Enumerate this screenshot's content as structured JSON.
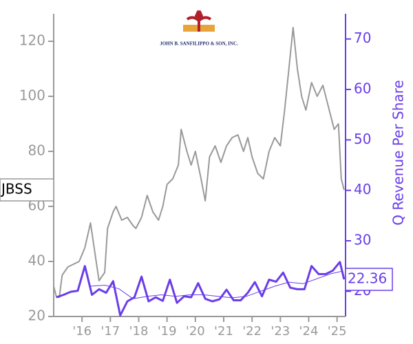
{
  "chart_data": {
    "type": "line",
    "ticker": "JBSS",
    "logo_text": "JOHN B. SANFILIPPO & SON, INC.",
    "y2_label": "Q Revenue Per Share",
    "xlim": [
      2015.0,
      2025.3
    ],
    "xticks": [
      {
        "value": 2016,
        "label": "'16"
      },
      {
        "value": 2017,
        "label": "'17"
      },
      {
        "value": 2018,
        "label": "'18"
      },
      {
        "value": 2019,
        "label": "'19"
      },
      {
        "value": 2020,
        "label": "'20"
      },
      {
        "value": 2021,
        "label": "'21"
      },
      {
        "value": 2022,
        "label": "'22"
      },
      {
        "value": 2023,
        "label": "'23"
      },
      {
        "value": 2024,
        "label": "'24"
      },
      {
        "value": 2025,
        "label": "'25"
      }
    ],
    "ylim": [
      20,
      130
    ],
    "yticks": [
      20,
      40,
      60,
      80,
      100,
      120
    ],
    "y2lim": [
      15,
      75
    ],
    "y2ticks": [
      20,
      30,
      40,
      50,
      60,
      70
    ],
    "series": [
      {
        "name": "JBSS",
        "color": "#999999",
        "width": 2,
        "axis": "y",
        "x": [
          2015.0,
          2015.1,
          2015.2,
          2015.3,
          2015.5,
          2015.7,
          2015.9,
          2016.1,
          2016.3,
          2016.5,
          2016.6,
          2016.8,
          2016.9,
          2017.1,
          2017.2,
          2017.4,
          2017.6,
          2017.8,
          2017.9,
          2018.1,
          2018.3,
          2018.5,
          2018.7,
          2018.85,
          2019.0,
          2019.2,
          2019.4,
          2019.5,
          2019.7,
          2019.85,
          2020.0,
          2020.2,
          2020.35,
          2020.5,
          2020.7,
          2020.9,
          2021.1,
          2021.3,
          2021.5,
          2021.7,
          2021.85,
          2022.0,
          2022.2,
          2022.4,
          2022.6,
          2022.8,
          2023.0,
          2023.15,
          2023.3,
          2023.45,
          2023.6,
          2023.75,
          2023.9,
          2024.1,
          2024.3,
          2024.5,
          2024.7,
          2024.9,
          2025.05,
          2025.15,
          2025.25
        ],
        "values": [
          31,
          27,
          27,
          35,
          38,
          39,
          40,
          45,
          54,
          40,
          33,
          36,
          52,
          58,
          60,
          55,
          56,
          53,
          52,
          56,
          64,
          58,
          55,
          60,
          68,
          70,
          75,
          88,
          80,
          75,
          80,
          70,
          62,
          78,
          82,
          76,
          82,
          85,
          86,
          80,
          85,
          78,
          72,
          70,
          80,
          85,
          82,
          95,
          110,
          125,
          110,
          100,
          95,
          105,
          100,
          104,
          96,
          88,
          90,
          70,
          66
        ]
      },
      {
        "name": "Q Revenue Per Share",
        "color": "#6a3de8",
        "width": 3,
        "axis": "y2",
        "x": [
          2015.1,
          2015.35,
          2015.6,
          2015.85,
          2016.1,
          2016.35,
          2016.6,
          2016.85,
          2017.1,
          2017.35,
          2017.6,
          2017.85,
          2018.1,
          2018.35,
          2018.6,
          2018.85,
          2019.1,
          2019.35,
          2019.6,
          2019.85,
          2020.1,
          2020.35,
          2020.6,
          2020.85,
          2021.1,
          2021.35,
          2021.6,
          2021.85,
          2022.1,
          2022.35,
          2022.6,
          2022.85,
          2023.1,
          2023.35,
          2023.6,
          2023.85,
          2024.1,
          2024.35,
          2024.6,
          2024.85,
          2025.1,
          2025.25
        ],
        "values": [
          18.8,
          19.3,
          19.9,
          20.1,
          25,
          19.3,
          20.4,
          19.7,
          22,
          15.2,
          18,
          18.8,
          22.9,
          18,
          18.8,
          18.1,
          22.3,
          17.7,
          19,
          18.8,
          21.6,
          18.5,
          18,
          18.4,
          20.3,
          18.2,
          18.2,
          19.7,
          21.8,
          19,
          22.3,
          21.9,
          23.7,
          20.7,
          20.4,
          20.4,
          25,
          23.4,
          23.4,
          24.1,
          25.8,
          22.36
        ]
      },
      {
        "name": "Q Revenue Per Share Average",
        "color": "#6a3de8",
        "width": 1,
        "axis": "y2",
        "x": [
          2016.3,
          2016.8,
          2017.3,
          2017.8,
          2018.3,
          2018.8,
          2019.3,
          2019.8,
          2020.3,
          2020.8,
          2021.3,
          2021.8,
          2022.3,
          2022.8,
          2023.3,
          2023.8,
          2024.3,
          2024.8,
          2025.2
        ],
        "values": [
          21.0,
          21.2,
          20.5,
          18.5,
          19.0,
          19.3,
          19.0,
          19.3,
          19.3,
          19.0,
          18.7,
          19.0,
          20.0,
          21.0,
          21.8,
          21.5,
          22.5,
          23.5,
          24.0
        ]
      }
    ]
  }
}
